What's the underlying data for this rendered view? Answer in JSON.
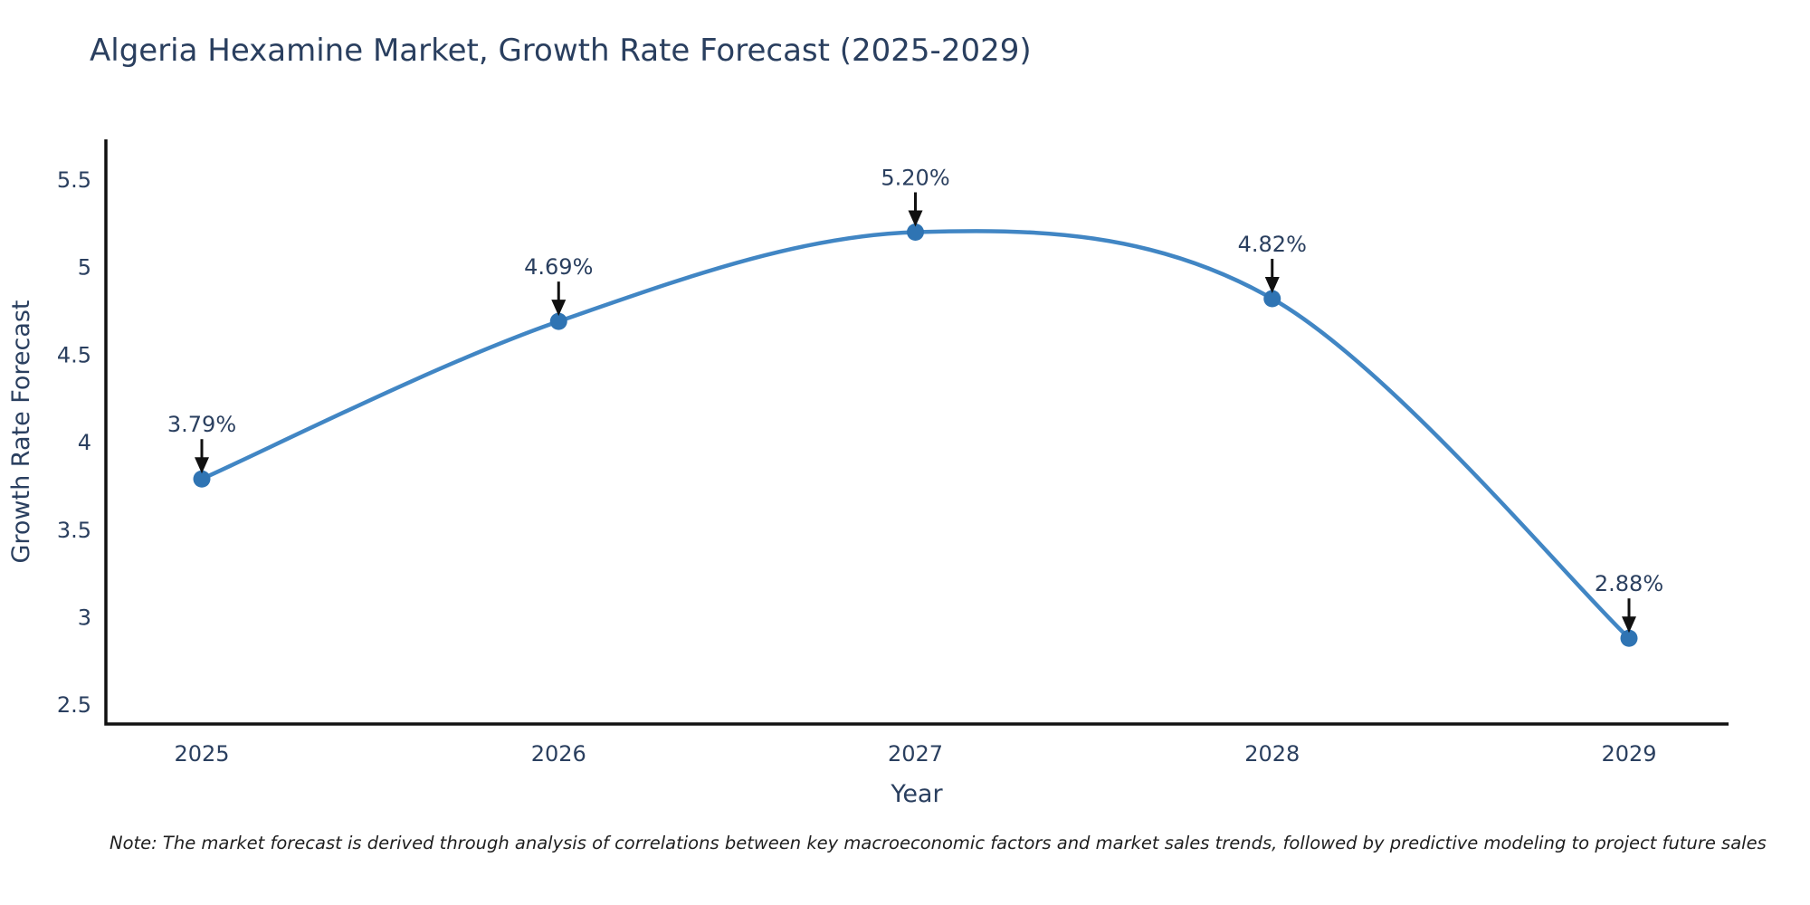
{
  "title": "Algeria Hexamine Market, Growth Rate Forecast (2025-2029)",
  "note": "Note: The market forecast is derived through analysis of correlations between key macroeconomic factors and market sales trends, followed by predictive modeling to project future sales",
  "chart_data": {
    "type": "line",
    "x": [
      "2025",
      "2026",
      "2027",
      "2028",
      "2029"
    ],
    "series": [
      {
        "name": "Growth Rate Forecast",
        "values": [
          3.79,
          4.69,
          5.2,
          4.82,
          2.88
        ]
      }
    ],
    "point_labels": [
      "3.79%",
      "4.69%",
      "5.20%",
      "4.82%",
      "2.88%"
    ],
    "xlabel": "Year",
    "ylabel": "Growth Rate Forecast",
    "yticks": [
      "2.5",
      "3",
      "3.5",
      "4",
      "4.5",
      "5",
      "5.5"
    ],
    "ytick_values": [
      2.5,
      3,
      3.5,
      4,
      4.5,
      5,
      5.5
    ],
    "ylim": [
      2.39,
      5.73
    ],
    "grid": false,
    "legend": "none",
    "line_shape": "spline",
    "annotation_style": "value label with down arrow to each point",
    "colors": {
      "line": "#4186c4",
      "marker": "#2f74b3",
      "arrow": "#111111",
      "text": "#2a3f5f",
      "axis": "#111111",
      "note_text": "#1f1f1f",
      "background": "#ffffff"
    }
  }
}
